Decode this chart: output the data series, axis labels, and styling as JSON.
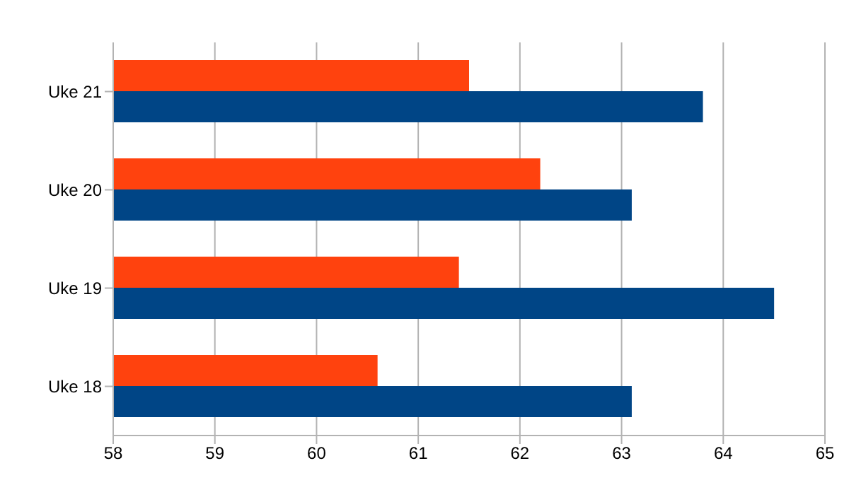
{
  "chart_data": {
    "type": "bar",
    "orientation": "horizontal",
    "categories": [
      "Uke 21",
      "Uke 20",
      "Uke 19",
      "Uke 18"
    ],
    "series": [
      {
        "color": "#ff420e",
        "values": [
          61.5,
          62.2,
          61.4,
          60.6
        ]
      },
      {
        "color": "#004586",
        "values": [
          63.8,
          63.1,
          64.5,
          63.1
        ]
      }
    ],
    "xlim": [
      58,
      65
    ],
    "xticks": [
      58,
      59,
      60,
      61,
      62,
      63,
      64,
      65
    ],
    "grid": "x",
    "legend": false
  }
}
